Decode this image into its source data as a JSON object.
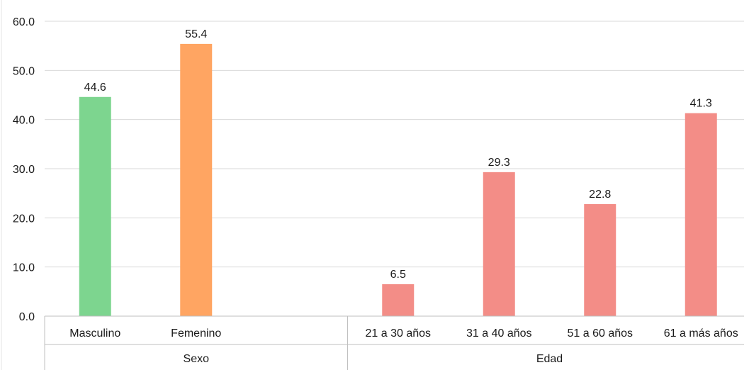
{
  "chart_data": {
    "type": "bar",
    "title": "",
    "xlabel": "",
    "ylabel": "",
    "ylim": [
      0,
      60
    ],
    "yticks": [
      "0.0",
      "10.0",
      "20.0",
      "30.0",
      "40.0",
      "50.0",
      "60.0"
    ],
    "grid": true,
    "legend": "none",
    "groups": [
      {
        "name": "Sexo",
        "categories": [
          "Masculino",
          "Femenino"
        ],
        "values": [
          44.6,
          55.4
        ],
        "labels": [
          "44.6",
          "55.4"
        ],
        "colors": [
          "#7dd58f",
          "#ffa562"
        ]
      },
      {
        "name": "Edad",
        "categories": [
          "21 a 30 años",
          "31 a 40 años",
          "51 a 60 años",
          "61 a más años"
        ],
        "values": [
          6.5,
          29.3,
          22.8,
          41.3
        ],
        "labels": [
          "6.5",
          "29.3",
          "22.8",
          "41.3"
        ],
        "colors": [
          "#f38d87",
          "#f38d87",
          "#f38d87",
          "#f38d87"
        ]
      }
    ]
  }
}
